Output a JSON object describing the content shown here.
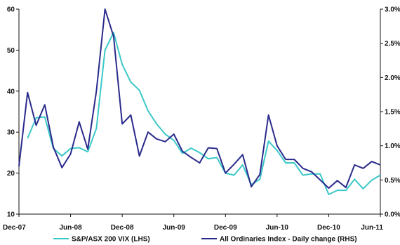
{
  "chart_data": {
    "type": "line",
    "title": "",
    "xlabel": "",
    "ylabel": "",
    "x": [
      "2007-12",
      "2008-01",
      "2008-02",
      "2008-03",
      "2008-04",
      "2008-05",
      "2008-06",
      "2008-07",
      "2008-08",
      "2008-09",
      "2008-10",
      "2008-11",
      "2008-12",
      "2009-01",
      "2009-02",
      "2009-03",
      "2009-04",
      "2009-05",
      "2009-06",
      "2009-07",
      "2009-08",
      "2009-09",
      "2009-10",
      "2009-11",
      "2009-12",
      "2010-01",
      "2010-02",
      "2010-03",
      "2010-04",
      "2010-05",
      "2010-06",
      "2010-07",
      "2010-08",
      "2010-09",
      "2010-10",
      "2010-11",
      "2010-12",
      "2011-01",
      "2011-02",
      "2011-03",
      "2011-04",
      "2011-05",
      "2011-06"
    ],
    "x_ticks": [
      "Dec-07",
      "Jun-08",
      "Dec-08",
      "Jun-09",
      "Dec-09",
      "Jun-10",
      "Dec-10",
      "Jun-11"
    ],
    "y_left": {
      "ylim": [
        10,
        60
      ],
      "ticks": [
        "10",
        "20",
        "30",
        "40",
        "50",
        "60"
      ]
    },
    "y_right": {
      "ylim": [
        0.0,
        3.0
      ],
      "ticks": [
        "0.0%",
        "0.5%",
        "1.0%",
        "1.5%",
        "2.0%",
        "2.5%",
        "3.0%"
      ]
    },
    "series": [
      {
        "name": "S&P/ASX 200 VIX (LHS)",
        "axis": "left",
        "color": "#3cc8c8",
        "values": [
          null,
          28.5,
          33.5,
          33.7,
          26.0,
          24.2,
          26.0,
          26.2,
          25.2,
          30.9,
          50.0,
          54.3,
          46.5,
          42.2,
          40.2,
          35.2,
          32.0,
          29.5,
          28.0,
          24.8,
          26.1,
          25.0,
          23.5,
          23.8,
          20.0,
          19.5,
          22.0,
          17.2,
          18.5,
          27.8,
          25.5,
          22.5,
          22.5,
          19.5,
          19.8,
          19.8,
          14.8,
          15.8,
          15.8,
          18.5,
          16.2,
          18.3,
          19.5
        ]
      },
      {
        "name": "All Ordinaries Index - Daily change (RHS)",
        "axis": "right",
        "color": "#2a2a8c",
        "values": [
          0.7,
          1.78,
          1.3,
          1.6,
          0.98,
          0.68,
          0.88,
          1.35,
          0.95,
          1.8,
          3.0,
          2.6,
          1.32,
          1.45,
          0.85,
          1.2,
          1.1,
          1.06,
          1.17,
          0.92,
          0.83,
          0.75,
          0.97,
          0.96,
          0.6,
          0.73,
          0.87,
          0.4,
          0.58,
          1.45,
          1.0,
          0.8,
          0.8,
          0.67,
          0.62,
          0.5,
          0.38,
          0.49,
          0.39,
          0.72,
          0.67,
          0.77,
          0.72
        ]
      }
    ],
    "legend_position": "bottom",
    "grid": false
  }
}
